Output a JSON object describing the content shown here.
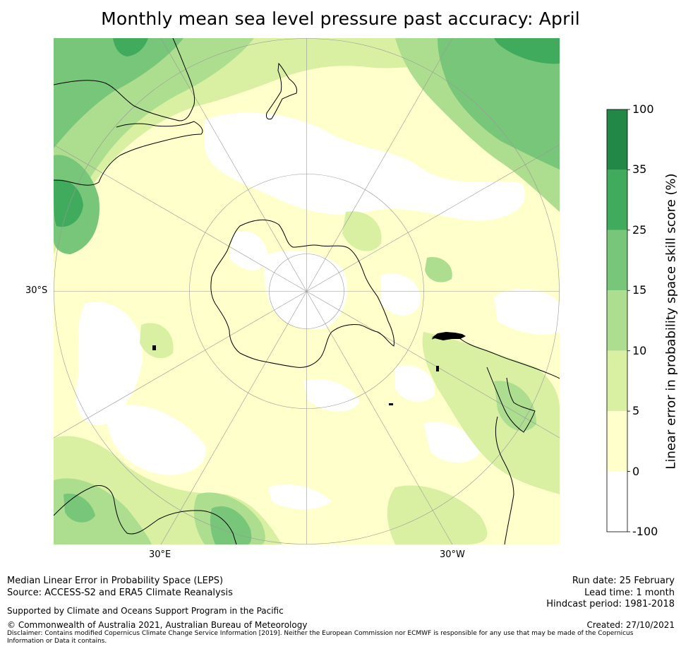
{
  "title": "Monthly mean sea level pressure past accuracy: April",
  "map": {
    "projection": "South polar stereographic",
    "lat_label": "30°S",
    "lon_labels": [
      "30°E",
      "30°W"
    ]
  },
  "colorbar": {
    "label": "Linear error in probability space skill score (%)",
    "bounds": [
      "100",
      "35",
      "25",
      "15",
      "10",
      "5",
      "0",
      "-100"
    ],
    "colors": [
      "#228847",
      "#41ab5d",
      "#78c679",
      "#addd8e",
      "#d9f0a3",
      "#ffffcc",
      "#ffffff"
    ]
  },
  "footer": {
    "left_line1": "Median Linear Error in Probability Space (LEPS)",
    "left_line2": "Source: ACCESS-S2 and ERA5 Climate Reanalysis",
    "support": "Supported by Climate and Oceans Support Program in the Pacific",
    "copyright": "© Commonwealth of Australia 2021, Australian Bureau of Meteorology",
    "disclaimer_line1": "Disclaimer: Contains modified Copernicus Climate Change Service Information [2019]. Neither the European Commission nor ECMWF is responsible for any use that may be made of the Copernicus",
    "disclaimer_line2": "Information or Data it contains.",
    "run_date": "Run date: 25 February",
    "lead_time": "Lead time: 1 month",
    "hindcast": "Hindcast period: 1981-2018",
    "created": "Created: 27/10/2021"
  }
}
